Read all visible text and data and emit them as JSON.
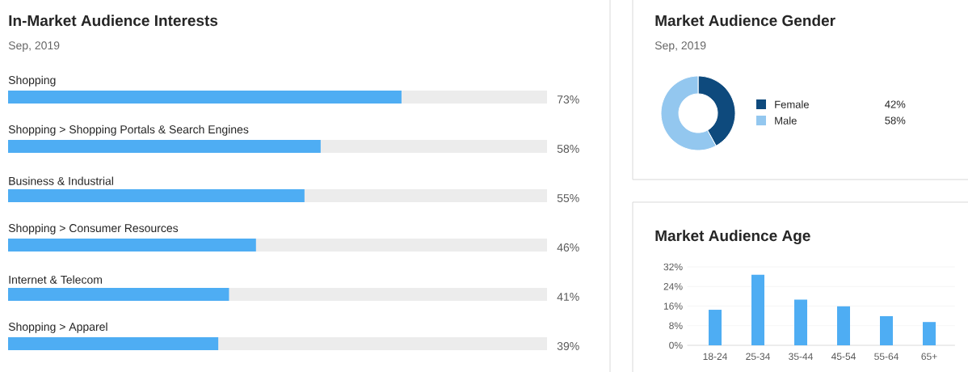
{
  "chart_data": [
    {
      "type": "bar",
      "orientation": "horizontal",
      "stacked": true,
      "title": "In-Market Audience Interests",
      "subtitle": "Sep, 2019",
      "categories": [
        "Shopping",
        "Shopping > Shopping Portals & Search Engines",
        "Business & Industrial",
        "Shopping > Consumer Resources",
        "Internet & Telecom",
        "Shopping > Apparel"
      ],
      "series": [
        {
          "color": "#4eadf3",
          "values": [
            73,
            58,
            55,
            46,
            41,
            39
          ],
          "value_labels": [
            "73%",
            "58%",
            "55%",
            "46%",
            "41%",
            "39%"
          ]
        },
        {
          "color": "#ececec",
          "values": [
            27,
            42,
            45,
            54,
            59,
            61
          ]
        }
      ],
      "xlim": [
        0,
        100
      ],
      "tick_labels": false
    },
    {
      "type": "donut",
      "title": "Market Audience Gender",
      "subtitle": "Sep, 2019",
      "categories": [
        "Female",
        "Male"
      ],
      "values": [
        42,
        58
      ],
      "colors": [
        "#0e4a7d",
        "#93c7ef"
      ],
      "value_labels": [
        "42%",
        "58%"
      ],
      "legend": "right"
    },
    {
      "type": "bar",
      "title": "Market Audience Age",
      "categories": [
        "18-24",
        "25-34",
        "35-44",
        "45-54",
        "55-64",
        "65+"
      ],
      "values": [
        14.5,
        28.8,
        18.6,
        15.9,
        11.9,
        9.5
      ],
      "color": "#4eadf3",
      "ylim": [
        0,
        32
      ],
      "yticks": [
        {
          "value": 0,
          "label": "0%"
        },
        {
          "value": 8,
          "label": "8%"
        },
        {
          "value": 16,
          "label": "16%"
        },
        {
          "value": 24,
          "label": "24%"
        },
        {
          "value": 32,
          "label": "32%"
        }
      ],
      "grid": "y"
    }
  ]
}
